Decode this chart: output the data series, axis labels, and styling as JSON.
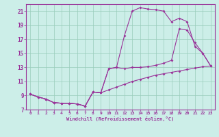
{
  "xlabel": "Windchill (Refroidissement éolien,°C)",
  "background_color": "#cceee8",
  "line_color": "#993399",
  "grid_color": "#99ccbb",
  "xlim": [
    -0.5,
    23.5
  ],
  "ylim": [
    7,
    22
  ],
  "xticks": [
    0,
    1,
    2,
    3,
    4,
    5,
    6,
    7,
    8,
    9,
    10,
    11,
    12,
    13,
    14,
    15,
    16,
    17,
    18,
    19,
    20,
    21,
    22,
    23
  ],
  "yticks": [
    7,
    9,
    11,
    13,
    15,
    17,
    19,
    21
  ],
  "line1_x": [
    0,
    1,
    2,
    3,
    4,
    5,
    6,
    7,
    8,
    9,
    10,
    11,
    12,
    13,
    14,
    15,
    16,
    17,
    18,
    19,
    20,
    21,
    22,
    23
  ],
  "line1_y": [
    9.2,
    8.8,
    8.5,
    8.0,
    7.9,
    7.9,
    7.8,
    7.5,
    9.5,
    9.4,
    9.8,
    10.2,
    10.6,
    11.0,
    11.3,
    11.6,
    11.9,
    12.1,
    12.3,
    12.5,
    12.7,
    12.9,
    13.1,
    13.2
  ],
  "line2_x": [
    0,
    1,
    2,
    3,
    4,
    5,
    6,
    7,
    8,
    9,
    10,
    11,
    12,
    13,
    14,
    15,
    16,
    17,
    18,
    19,
    20,
    21,
    22,
    23
  ],
  "line2_y": [
    9.2,
    8.8,
    8.5,
    8.0,
    7.9,
    7.9,
    7.8,
    7.5,
    9.5,
    9.4,
    12.8,
    13.0,
    17.5,
    21.0,
    21.5,
    21.3,
    21.2,
    21.0,
    19.5,
    20.0,
    19.5,
    16.0,
    15.0,
    13.2
  ],
  "line3_x": [
    0,
    1,
    2,
    3,
    4,
    5,
    6,
    7,
    8,
    9,
    10,
    11,
    12,
    13,
    14,
    15,
    16,
    17,
    18,
    19,
    20,
    21,
    22,
    23
  ],
  "line3_y": [
    9.2,
    8.8,
    8.5,
    8.0,
    7.9,
    7.9,
    7.8,
    7.5,
    9.5,
    9.4,
    12.8,
    13.0,
    12.8,
    13.0,
    13.0,
    13.1,
    13.3,
    13.6,
    14.0,
    18.5,
    18.3,
    16.5,
    15.0,
    13.2
  ]
}
